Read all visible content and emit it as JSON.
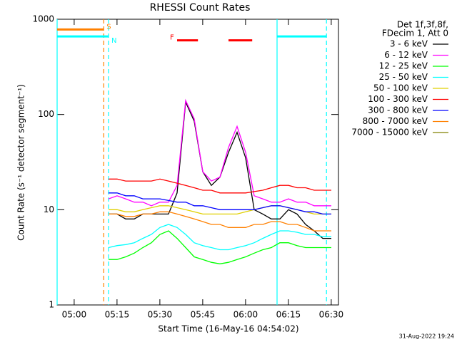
{
  "chart_data": {
    "type": "line",
    "title": "RHESSI Count Rates",
    "xlabel": "Start Time (16-May-16 04:54:02)",
    "ylabel": "Count Rate (s⁻¹ detector segment⁻¹)",
    "legend_header": [
      "Det 1f,3f,8f,",
      "FDecim 1, Att 0"
    ],
    "timestamp": "31-Aug-2022 19:24",
    "log_y": true,
    "legend": "right",
    "xlim": [
      0,
      98.5
    ],
    "xticks": [
      {
        "value": 5.97,
        "label": "05:00"
      },
      {
        "value": 20.97,
        "label": "05:15"
      },
      {
        "value": 35.97,
        "label": "05:30"
      },
      {
        "value": 50.97,
        "label": "05:45"
      },
      {
        "value": 65.97,
        "label": "06:00"
      },
      {
        "value": 80.97,
        "label": "06:15"
      },
      {
        "value": 95.97,
        "label": "06:30"
      }
    ],
    "ylim": [
      1,
      1000
    ],
    "yticks": [
      1,
      10,
      100,
      1000
    ],
    "x": [
      18,
      21,
      24,
      27,
      30,
      33,
      36,
      39,
      42,
      45,
      48,
      51,
      54,
      57,
      60,
      63,
      66,
      69,
      72,
      75,
      78,
      81,
      84,
      87,
      90,
      93,
      96
    ],
    "series": [
      {
        "name": "3 - 6 keV",
        "color": "#000000",
        "values": [
          9,
          9,
          8,
          8,
          9,
          9,
          9,
          9,
          15,
          135,
          85,
          25,
          18,
          22,
          40,
          65,
          35,
          10,
          9,
          8,
          8,
          10,
          9,
          7,
          6,
          5,
          5
        ]
      },
      {
        "name": "6 - 12 keV",
        "color": "#ff00ff",
        "values": [
          13,
          14,
          13,
          12,
          12,
          11,
          12,
          12,
          18,
          140,
          90,
          25,
          20,
          22,
          45,
          75,
          40,
          14,
          13,
          12,
          12,
          13,
          12,
          12,
          11,
          11,
          11
        ]
      },
      {
        "name": "12 - 25 keV",
        "color": "#00ff00",
        "values": [
          3,
          3,
          3.2,
          3.5,
          4,
          4.5,
          5.5,
          6,
          5,
          4,
          3.2,
          3,
          2.8,
          2.7,
          2.8,
          3,
          3.2,
          3.5,
          3.8,
          4,
          4.5,
          4.5,
          4.2,
          4,
          4,
          4,
          4
        ]
      },
      {
        "name": "25 - 50 keV",
        "color": "#00ffff",
        "values": [
          4,
          4.2,
          4.3,
          4.5,
          5,
          5.5,
          6.5,
          7,
          6.5,
          5.5,
          4.5,
          4.2,
          4,
          3.8,
          3.8,
          4,
          4.2,
          4.5,
          5,
          5.5,
          6,
          6,
          5.8,
          5.5,
          5.5,
          5.2,
          5.2
        ]
      },
      {
        "name": "50 - 100 keV",
        "color": "#e0d000",
        "values": [
          10,
          10,
          9.5,
          9.5,
          10,
          10.5,
          11,
          11,
          10.5,
          10,
          9.5,
          9,
          9,
          9,
          9,
          9,
          9.5,
          10,
          10.5,
          11,
          11,
          10.5,
          10,
          9.5,
          9,
          9,
          9
        ]
      },
      {
        "name": "100 - 300 keV",
        "color": "#ff0000",
        "values": [
          21,
          21,
          20,
          20,
          20,
          20,
          21,
          20,
          19,
          18,
          17,
          16,
          16,
          15,
          15,
          15,
          15,
          15.5,
          16,
          17,
          18,
          18,
          17,
          17,
          16,
          16,
          16
        ]
      },
      {
        "name": "300 - 800 keV",
        "color": "#0000ff",
        "values": [
          15,
          15,
          14,
          14,
          13,
          13,
          13,
          12.5,
          12,
          12,
          11,
          11,
          10.5,
          10,
          10,
          10,
          10,
          10,
          10.5,
          11,
          11,
          10.5,
          10,
          9.5,
          9.5,
          9,
          9
        ]
      },
      {
        "name": "800 - 7000 keV",
        "color": "#ff8000",
        "values": [
          9,
          9,
          8.5,
          8.5,
          9,
          9,
          9.5,
          9.5,
          9,
          8.5,
          8,
          7.5,
          7,
          7,
          6.5,
          6.5,
          6.5,
          7,
          7,
          7.5,
          7.5,
          7,
          7,
          6.5,
          6,
          6,
          6
        ]
      },
      {
        "name": "7000 - 15000 keV",
        "color": "#808000",
        "values": [
          null,
          null,
          null,
          null,
          null,
          null,
          null,
          null,
          null,
          null,
          null,
          null,
          null,
          null,
          null,
          null,
          null,
          null,
          null,
          null,
          null,
          null,
          null,
          null,
          null,
          null,
          null
        ]
      }
    ],
    "vlines": [
      {
        "x": 0,
        "color": "#00ffff",
        "dashed": false
      },
      {
        "x": 16.3,
        "color": "#ff8000",
        "dashed": true
      },
      {
        "x": 18,
        "color": "#00ffff",
        "dashed": true
      },
      {
        "x": 77,
        "color": "#00ffff",
        "dashed": false
      },
      {
        "x": 94.3,
        "color": "#00ffff",
        "dashed": true
      }
    ],
    "flags": [
      {
        "label": "S",
        "color": "#ff8000",
        "y": 780,
        "spans": [
          [
            0,
            16.3
          ]
        ]
      },
      {
        "label": "N",
        "color": "#00ffff",
        "y": 660,
        "spans": [
          [
            0,
            18
          ],
          [
            77,
            94.3
          ]
        ]
      },
      {
        "label": "F",
        "color": "#ff0000",
        "y": 600,
        "spans": [
          [
            42,
            49.3
          ],
          [
            60,
            68.3
          ]
        ]
      }
    ]
  }
}
